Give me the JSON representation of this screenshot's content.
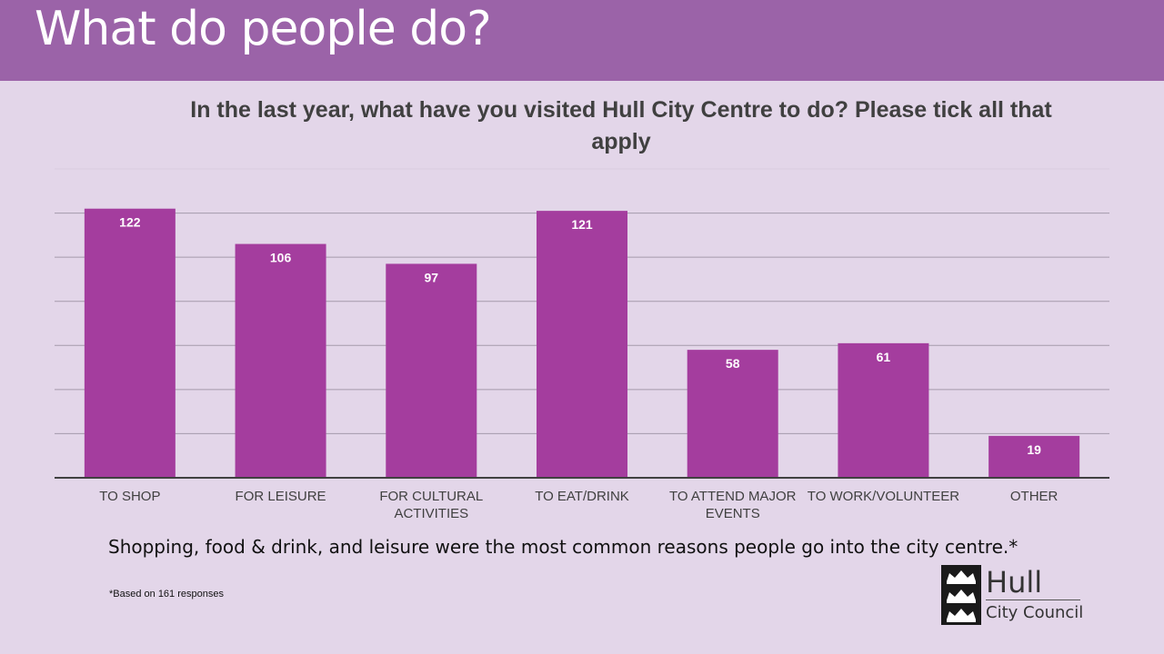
{
  "header": {
    "title": "What do people do?",
    "background_color": "#9b63a8"
  },
  "chart_data": {
    "type": "bar",
    "title": "In the last year, what have you visited Hull City Centre to do?  Please tick all that apply",
    "categories": [
      [
        "TO SHOP"
      ],
      [
        "FOR LEISURE"
      ],
      [
        "FOR CULTURAL",
        "ACTIVITIES"
      ],
      [
        "TO EAT/DRINK"
      ],
      [
        "TO ATTEND MAJOR",
        "EVENTS"
      ],
      [
        "TO WORK/VOLUNTEER"
      ],
      [
        "OTHER"
      ]
    ],
    "values": [
      122,
      106,
      97,
      121,
      58,
      61,
      19
    ],
    "ylim": [
      0,
      140
    ],
    "y_gridline_step": 20,
    "grid": true,
    "data_labels": true,
    "legend": "none",
    "bar_color": "#a43d9e"
  },
  "summary": "Shopping, food & drink, and leisure were the most common reasons people go into the city centre.*",
  "footnote": "*Based on 161 responses",
  "logo": {
    "name": "Hull",
    "subname": "City Council"
  }
}
